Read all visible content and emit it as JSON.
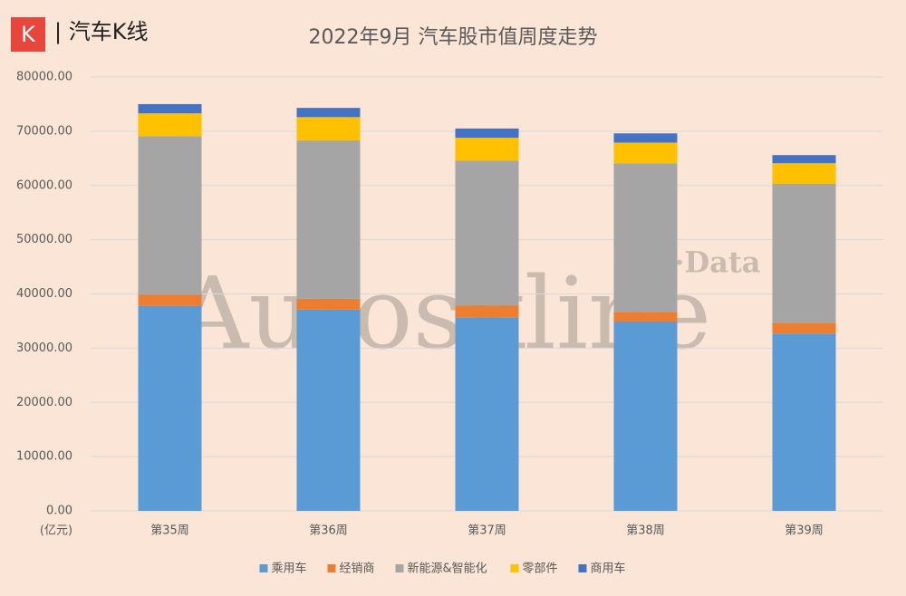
{
  "logo": {
    "icon": "K",
    "text": "| 汽车K线"
  },
  "watermark": {
    "main": "Autoskline",
    "sub": "K·Data"
  },
  "chart_data": {
    "type": "stacked-bar",
    "title": "2022年9月 汽车股市值周度走势",
    "unit_label": "(亿元)",
    "categories": [
      "第35周",
      "第36周",
      "第37周",
      "第38周",
      "第39周"
    ],
    "series": [
      {
        "name": "乘用车",
        "color": "#5b9bd5",
        "values": [
          37800,
          37100,
          35700,
          34900,
          32700
        ]
      },
      {
        "name": "经销商",
        "color": "#ed7d31",
        "values": [
          2100,
          2000,
          2200,
          1800,
          2000
        ]
      },
      {
        "name": "新能源&智能化",
        "color": "#a5a5a5",
        "values": [
          29200,
          29200,
          26700,
          27400,
          25600
        ]
      },
      {
        "name": "零部件",
        "color": "#ffc000",
        "values": [
          4200,
          4300,
          4200,
          3800,
          3800
        ]
      },
      {
        "name": "商用车",
        "color": "#4472c4",
        "values": [
          1700,
          1700,
          1700,
          1700,
          1500
        ]
      }
    ],
    "ylim": [
      0,
      80000
    ],
    "yticks": [
      {
        "value": 0,
        "label": "0.00"
      },
      {
        "value": 10000,
        "label": "10000.00"
      },
      {
        "value": 20000,
        "label": "20000.00"
      },
      {
        "value": 30000,
        "label": "30000.00"
      },
      {
        "value": 40000,
        "label": "40000.00"
      },
      {
        "value": 50000,
        "label": "50000.00"
      },
      {
        "value": 60000,
        "label": "60000.00"
      },
      {
        "value": 70000,
        "label": "70000.00"
      },
      {
        "value": 80000,
        "label": "80000.00"
      }
    ],
    "grid": true,
    "legend": "bottom"
  }
}
